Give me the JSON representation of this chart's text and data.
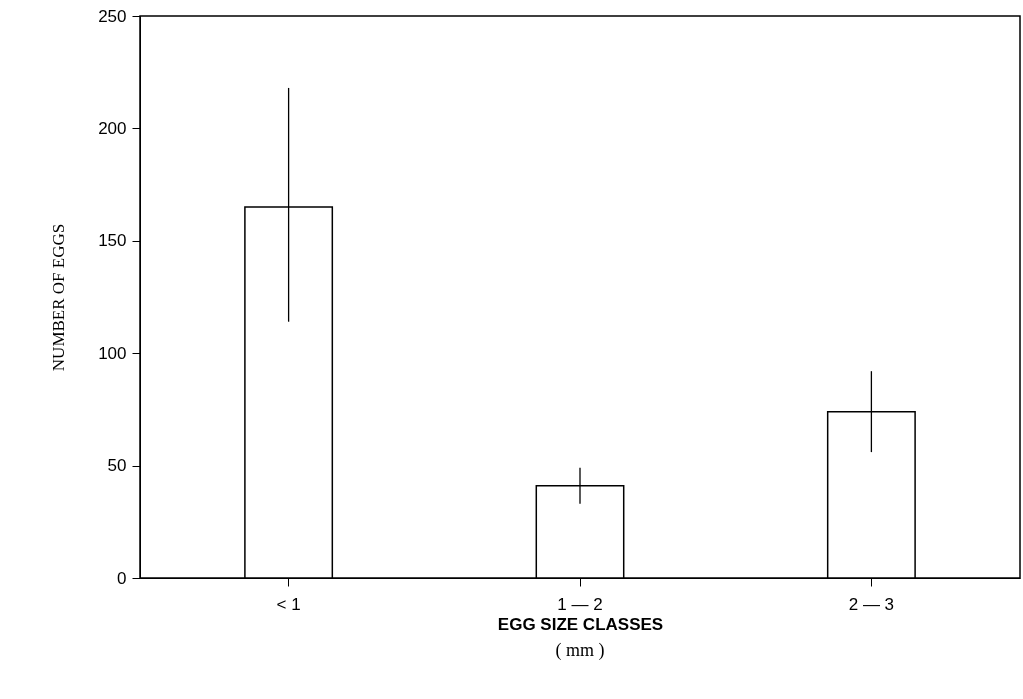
{
  "chart_data": {
    "type": "bar",
    "categories": [
      "< 1",
      "1 — 2",
      "2 — 3"
    ],
    "values": [
      165,
      41,
      74
    ],
    "errors": [
      [
        114,
        218
      ],
      [
        33,
        49
      ],
      [
        56,
        92
      ]
    ],
    "color": "#ffffff",
    "ylim": [
      0,
      250
    ],
    "yticks": [
      0,
      50,
      100,
      150,
      200,
      250
    ],
    "ylabel": "NUMBER OF EGGS",
    "xlabel": "EGG SIZE CLASSES",
    "annotations": [
      "( mm )"
    ],
    "grid": false
  }
}
